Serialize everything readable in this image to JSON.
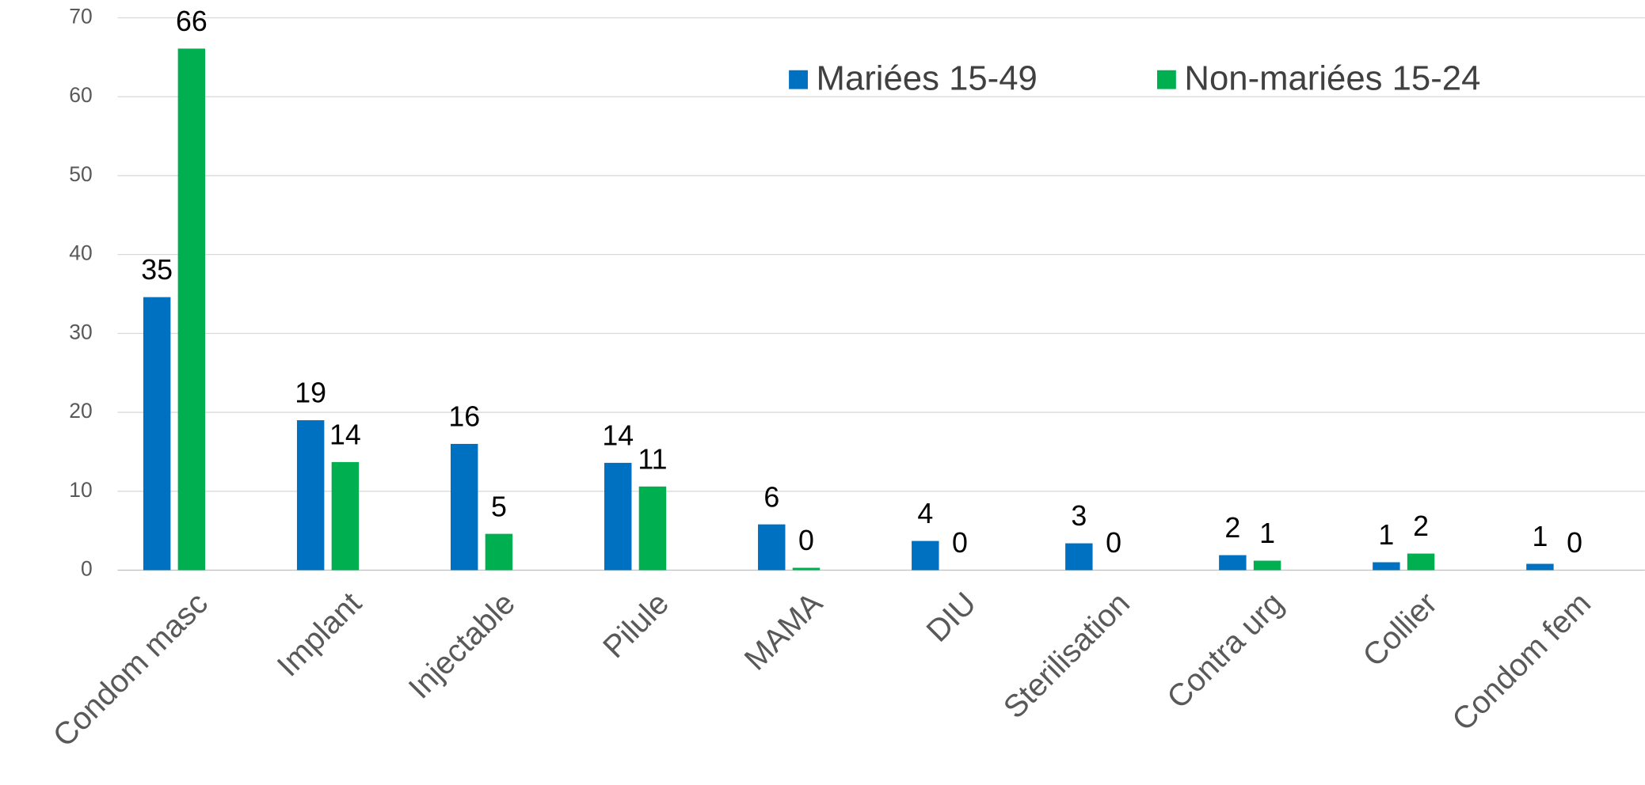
{
  "chart_data": {
    "type": "bar",
    "categories": [
      "Condom masc",
      "Implant",
      "Injectable",
      "Pilule",
      "MAMA",
      "DIU",
      "Sterilisation",
      "Contra urg",
      "Collier",
      "Condom fem"
    ],
    "series": [
      {
        "name": "Mariées 15-49",
        "color": "#0070c0",
        "values": [
          34.6,
          19,
          16,
          13.6,
          5.8,
          3.7,
          3.4,
          1.9,
          1.0,
          0.8
        ],
        "value_labels": [
          "35",
          "19",
          "16",
          "14",
          "6",
          "4",
          "3",
          "2",
          "1",
          "1"
        ]
      },
      {
        "name": "Non-mariées 15-24",
        "color": "#00b050",
        "values": [
          66.1,
          13.7,
          4.6,
          10.6,
          0.3,
          0,
          0,
          1.2,
          2.1,
          0
        ],
        "value_labels": [
          "66",
          "14",
          "5",
          "11",
          "0",
          "0",
          "0",
          "1",
          "2",
          "0"
        ]
      }
    ],
    "ylim": [
      0,
      70
    ],
    "yticks": [
      0,
      10,
      20,
      30,
      40,
      50,
      60,
      70
    ],
    "grid": true,
    "legend": "top-right"
  }
}
